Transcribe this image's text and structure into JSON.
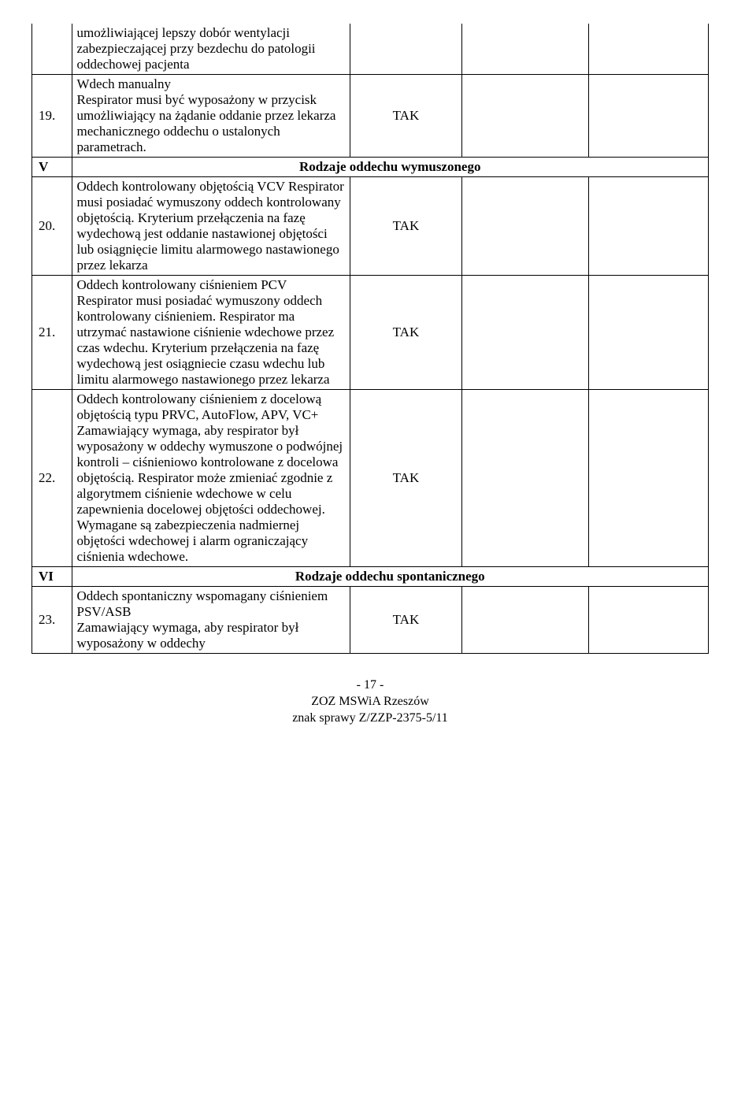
{
  "rows": [
    {
      "num": "",
      "desc": "umożliwiającej lepszy dobór wentylacji zabezpieczającej przy bezdechu do patologii oddechowej pacjenta",
      "req": "",
      "noTop": true
    },
    {
      "num": "19.",
      "desc": "Wdech manualny\nRespirator musi być wyposażony w przycisk umożliwiający na żądanie oddanie przez lekarza mechanicznego oddechu o ustalonych parametrach.",
      "req": "TAK"
    },
    {
      "section": true,
      "num": "V",
      "label": "Rodzaje oddechu wymuszonego"
    },
    {
      "num": "20.",
      "desc": "Oddech kontrolowany objętością VCV Respirator musi posiadać wymuszony oddech kontrolowany objętością. Kryterium przełączenia na fazę wydechową jest oddanie nastawionej objętości lub osiągnięcie limitu alarmowego nastawionego przez lekarza",
      "req": "TAK"
    },
    {
      "num": "21.",
      "desc": "Oddech kontrolowany ciśnieniem PCV\nRespirator musi posiadać wymuszony oddech kontrolowany ciśnieniem. Respirator ma utrzymać nastawione ciśnienie wdechowe przez czas wdechu. Kryterium przełączenia na fazę wydechową jest osiągniecie czasu wdechu lub limitu alarmowego nastawionego przez lekarza",
      "req": "TAK"
    },
    {
      "num": "22.",
      "desc": "Oddech kontrolowany ciśnieniem z docelową objętością typu PRVC, AutoFlow, APV, VC+\nZamawiający wymaga, aby respirator był wyposażony w oddechy wymuszone o podwójnej kontroli – ciśnieniowo kontrolowane z docelowa objętością. Respirator może zmieniać zgodnie z algorytmem ciśnienie wdechowe w celu zapewnienia docelowej objętości oddechowej. Wymagane są zabezpieczenia nadmiernej objętości wdechowej i alarm ograniczający ciśnienia wdechowe.",
      "req": "TAK"
    },
    {
      "section": true,
      "num": "VI",
      "label": "Rodzaje oddechu spontanicznego"
    },
    {
      "num": "23.",
      "desc": "Oddech spontaniczny wspomagany ciśnieniem PSV/ASB\nZamawiający wymaga, aby respirator był wyposażony w oddechy",
      "req": "TAK"
    }
  ],
  "footer": {
    "page": "- 17 -",
    "org": "ZOZ MSWiA Rzeszów",
    "ref": "znak sprawy Z/ZZP-2375-5/11"
  }
}
